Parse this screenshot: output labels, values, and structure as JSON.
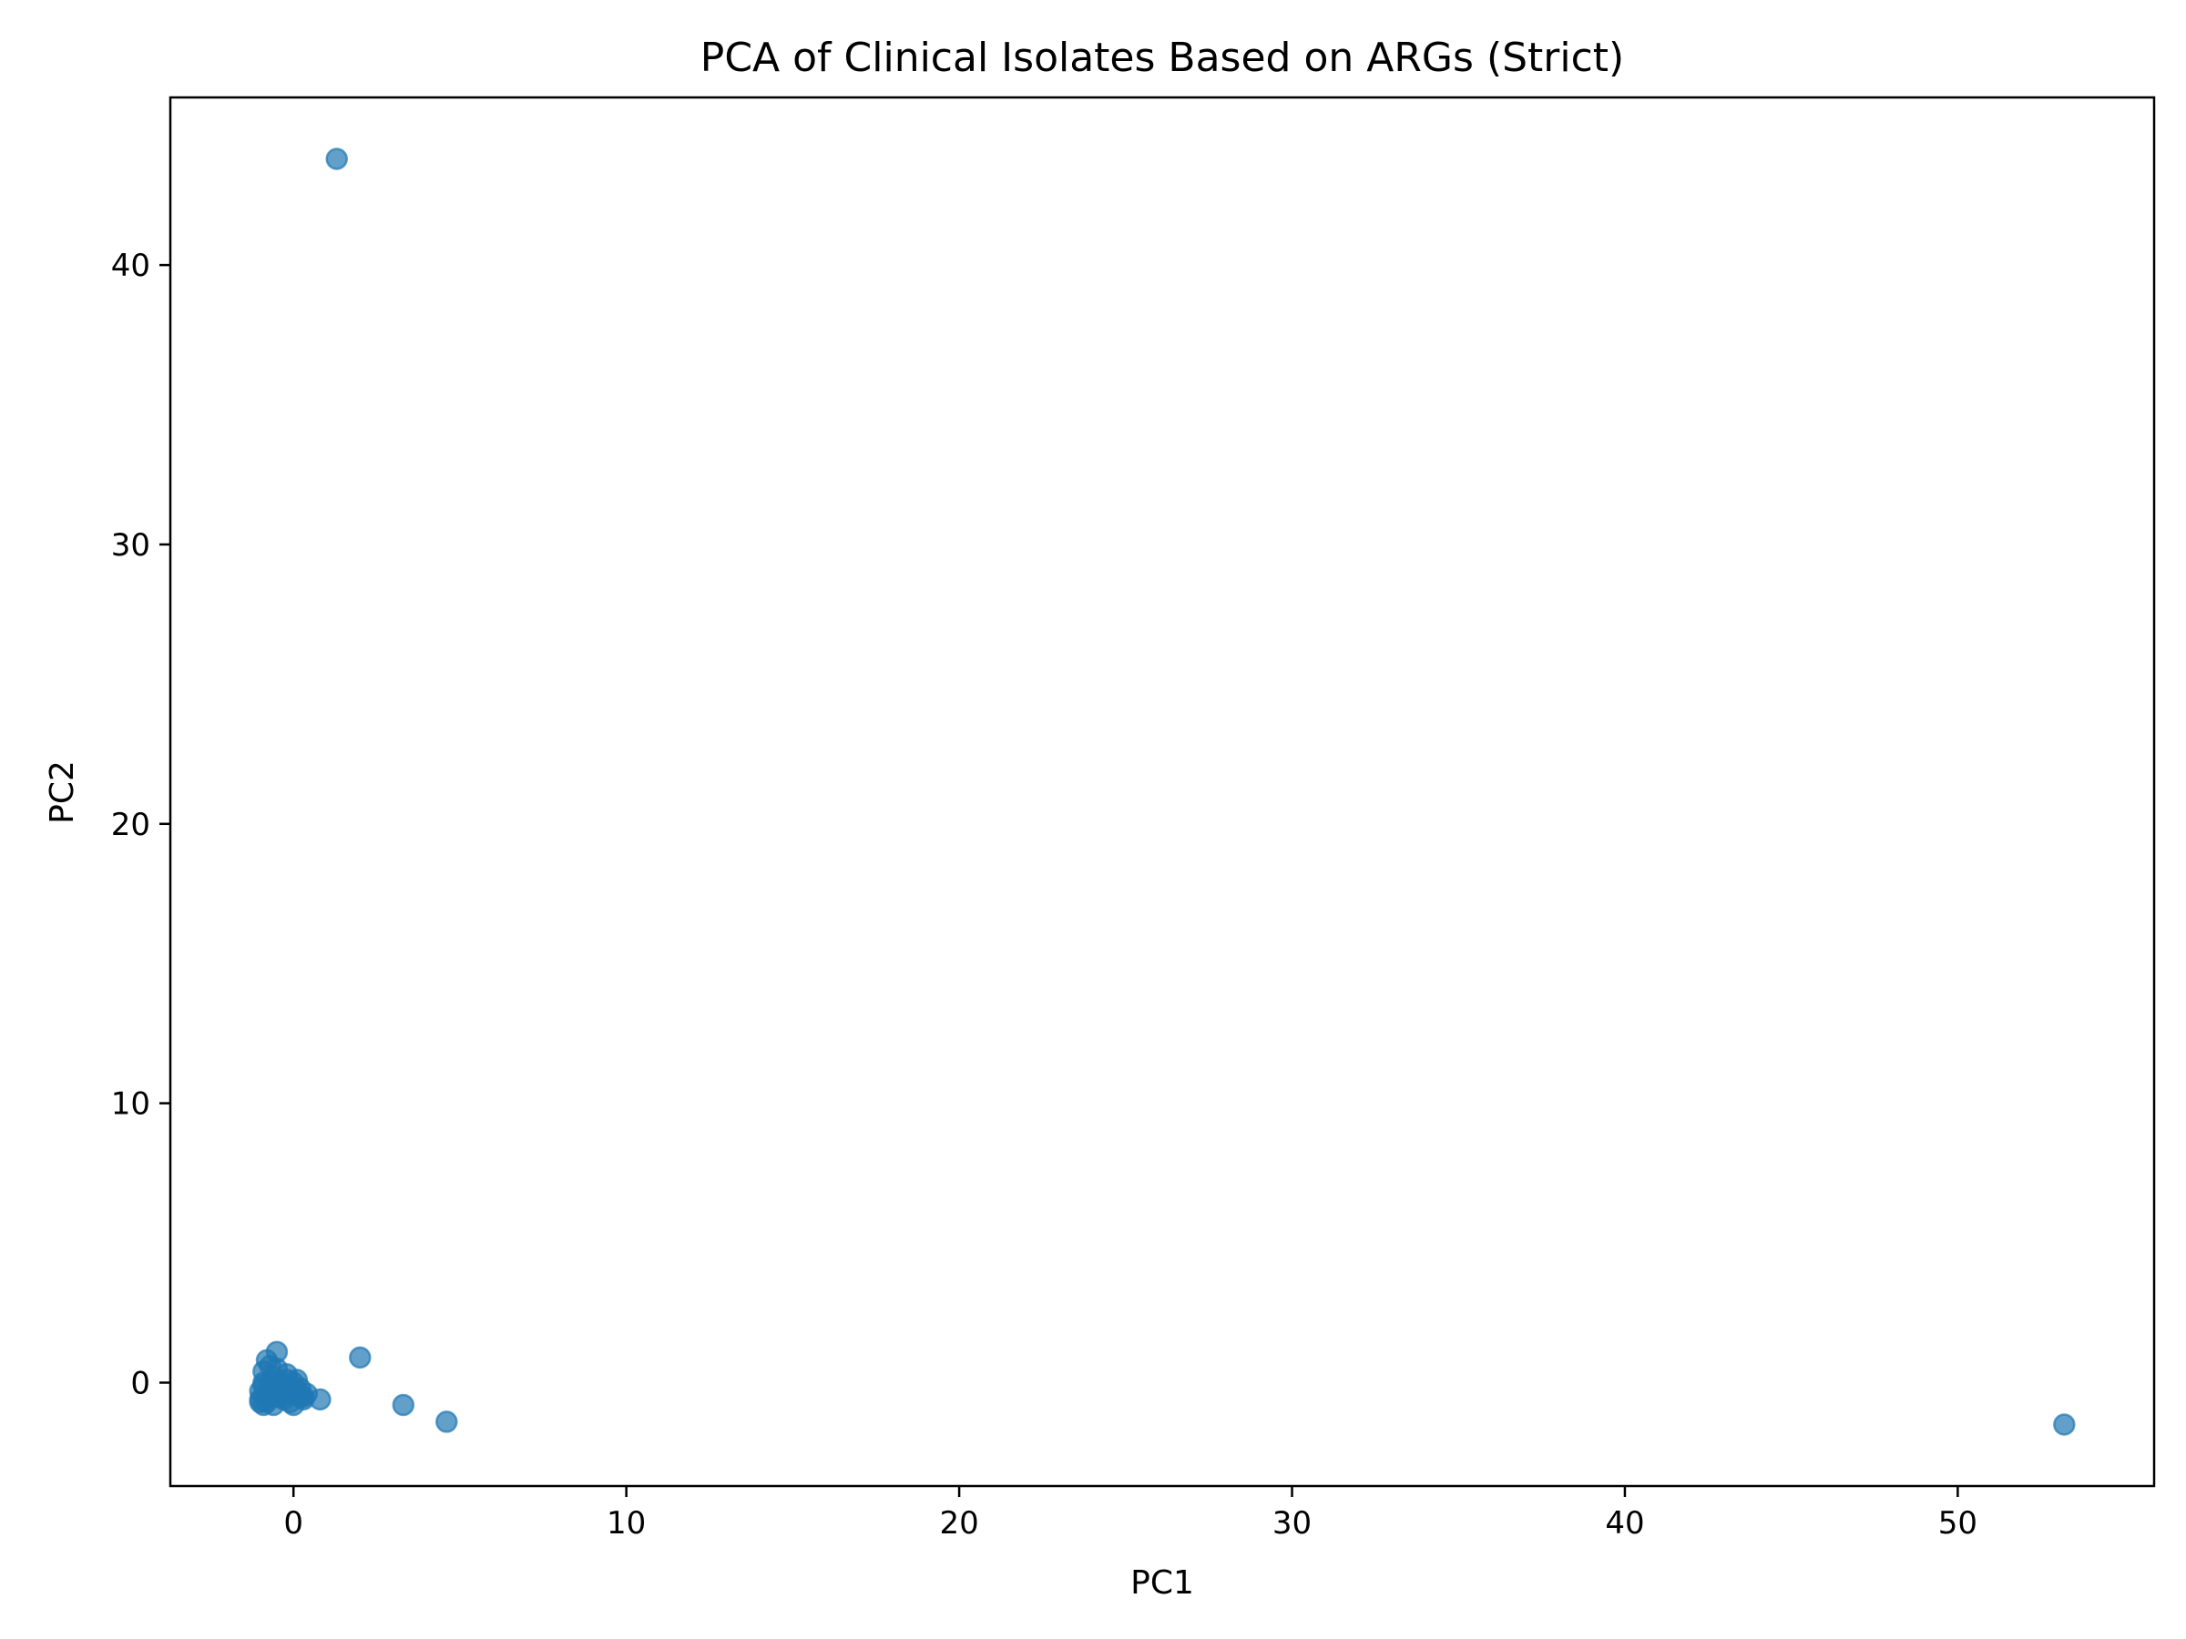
{
  "chart_data": {
    "type": "scatter",
    "title": "PCA of Clinical Isolates Based on ARGs (Strict)",
    "xlabel": "PC1",
    "ylabel": "PC2",
    "xlim": [
      -3.7,
      55.9
    ],
    "ylim": [
      -3.7,
      46.0
    ],
    "xticks": [
      0,
      10,
      20,
      30,
      40,
      50
    ],
    "yticks": [
      0,
      10,
      20,
      30,
      40
    ],
    "grid": false,
    "legend": "none",
    "marker_color": "#1f77b4",
    "marker_alpha": 0.7,
    "series": [
      {
        "x": [
          1.3,
          53.2,
          4.6,
          3.3,
          2.0,
          0.8,
          -0.5,
          -0.9,
          -0.8,
          -0.7,
          -1.0,
          -1.0,
          -0.9,
          -0.8,
          -0.6,
          -0.5,
          -0.4,
          -0.3,
          -0.2,
          -0.1,
          0.0,
          0.1,
          0.2,
          0.3,
          0.4,
          0.0,
          -0.2,
          -0.6,
          -0.9,
          -0.7,
          -0.5,
          -0.3,
          -0.1,
          0.1,
          0.0,
          -0.4,
          -0.8,
          -1.0,
          -0.6,
          -0.2,
          0.2,
          -0.7,
          -0.9,
          -0.5,
          0.3
        ],
        "y": [
          43.8,
          -1.5,
          -1.4,
          -0.8,
          0.9,
          -0.6,
          1.1,
          0.4,
          0.8,
          0.6,
          -0.3,
          -0.6,
          -0.8,
          -0.7,
          -0.5,
          -0.2,
          0.0,
          -0.1,
          -0.3,
          -0.4,
          -0.8,
          0.1,
          -0.5,
          -0.6,
          -0.4,
          -0.2,
          0.3,
          0.2,
          0.0,
          -0.1,
          -0.3,
          -0.6,
          -0.7,
          -0.3,
          0.0,
          -0.5,
          -0.4,
          -0.7,
          -0.8,
          0.1,
          -0.2,
          -0.5,
          -0.1,
          0.5,
          -0.5
        ]
      }
    ]
  }
}
